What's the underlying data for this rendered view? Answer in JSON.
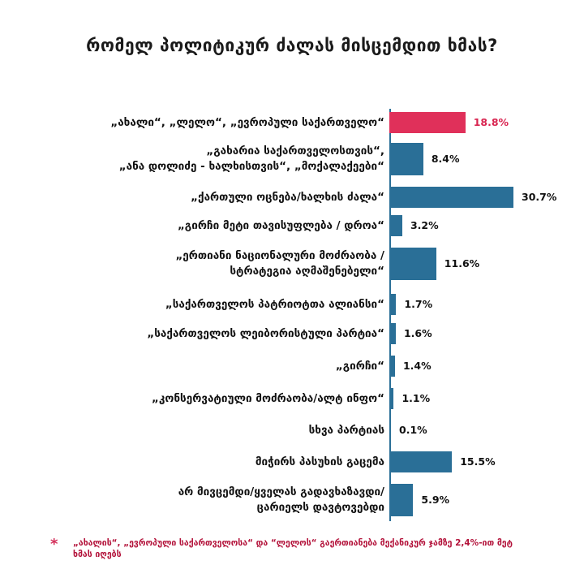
{
  "title": "რომელ პოლიტიკურ ძალას მისცემდით ხმას?",
  "chart_data": {
    "type": "bar",
    "orientation": "horizontal",
    "title": "რომელ პოლიტიკურ ძალას მისცემდით ხმას?",
    "xlim": [
      0,
      32
    ],
    "categories": [
      "„ახალი“, „ლელო“, „ევროპული საქართველო“",
      "„გახარია საქართველოსთვის“,\n„ანა დოლიძე - ხალხისთვის“, „მოქალაქეები“",
      "„ქართული ოცნება/ხალხის ძალა“",
      "„გირჩი მეტი თავისუფლება / დროა“",
      "„ერთიანი ნაციონალური მოძრაობა /\nსტრატეგია აღმაშენებელი“",
      "„საქართველოს პატრიოტთა ალიანსი“",
      "„საქართველოს ლეიბორისტული პარტია“",
      "„გირჩი“",
      "„კონსერვატიული მოძრაობა/ალტ ინფო“",
      "სხვა პარტიას",
      "მიჭირს პასუხის გაცემა",
      "არ მივცემდი/ყველას გადავხაზავდი/\nცარიელს დავტოვებდი"
    ],
    "values": [
      18.8,
      8.4,
      30.7,
      3.2,
      11.6,
      1.7,
      1.6,
      1.4,
      1.1,
      0.1,
      15.5,
      5.9
    ],
    "value_labels": [
      "18.8%",
      "8.4%",
      "30.7%",
      "3.2%",
      "11.6%",
      "1.7%",
      "1.6%",
      "1.4%",
      "1.1%",
      "0.1%",
      "15.5%",
      "5.9%"
    ],
    "highlight_index": 0,
    "colors": {
      "default": "#2a6f97",
      "highlight": "#e0305a",
      "highlight_text": "#d8234f"
    }
  },
  "footnote": {
    "star": "*",
    "text": "„ახალის“, „ევროპული საქართველოსა“ და “ლელოს“ გაერთიანება მექანიკურ ჯამზე 2,4%-ით მეტ ხმას იღებს"
  }
}
